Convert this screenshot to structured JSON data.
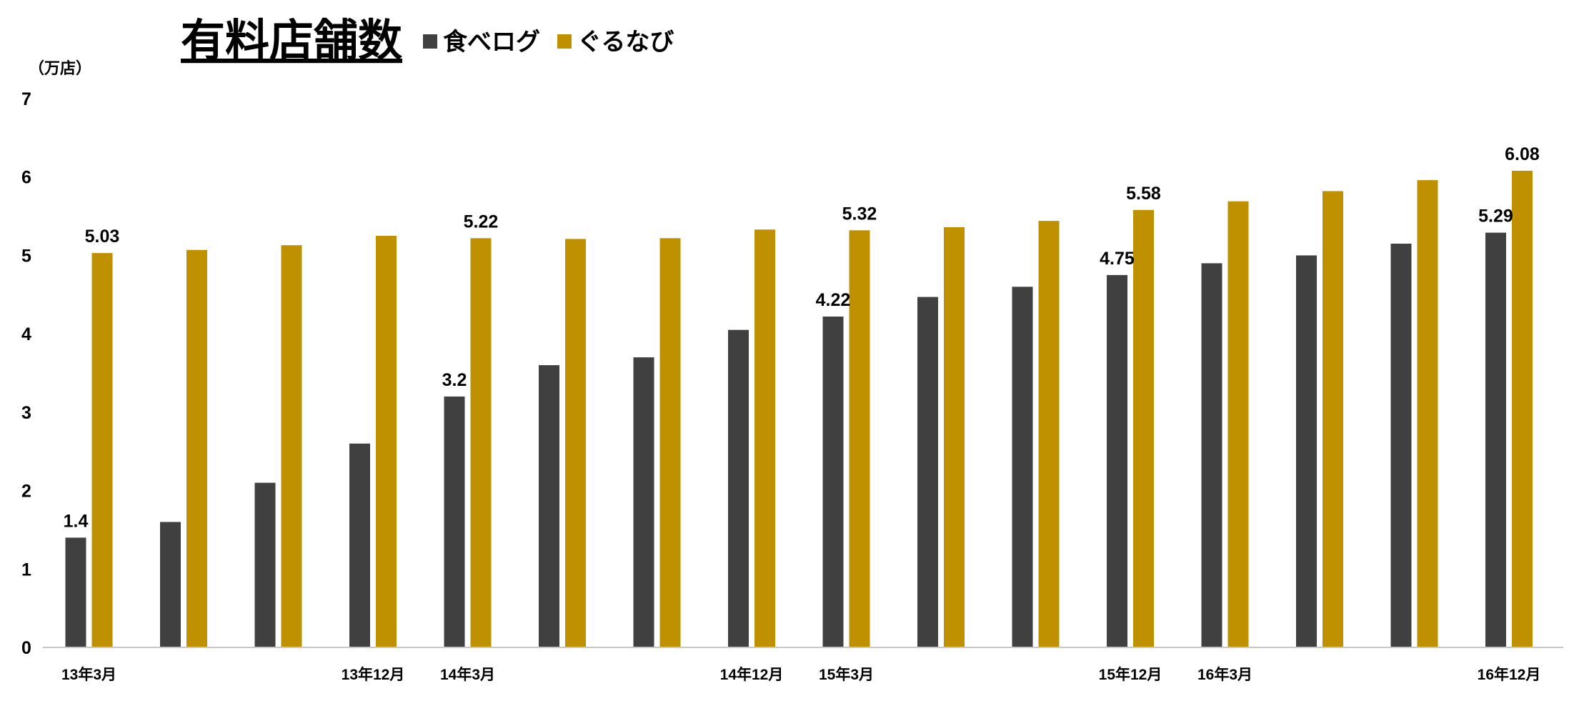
{
  "chart_data": {
    "type": "bar",
    "title": "有料店舗数",
    "unit_label": "（万店）",
    "ylim": [
      0,
      7
    ],
    "yticks": [
      "0",
      "1",
      "2",
      "3",
      "4",
      "5",
      "6",
      "7"
    ],
    "categories": [
      "13年3月",
      "",
      "",
      "13年12月",
      "14年3月",
      "",
      "",
      "14年12月",
      "15年3月",
      "",
      "",
      "15年12月",
      "16年3月",
      "",
      "",
      "16年12月"
    ],
    "series": [
      {
        "name": "食べログ",
        "color": "#404040",
        "values": [
          1.4,
          1.6,
          2.1,
          2.6,
          3.2,
          3.6,
          3.7,
          4.05,
          4.22,
          4.47,
          4.6,
          4.75,
          4.9,
          5.0,
          5.15,
          5.29
        ],
        "labels": [
          "1.4",
          "",
          "",
          "",
          "3.2",
          "",
          "",
          "",
          "4.22",
          "",
          "",
          "4.75",
          "",
          "",
          "",
          "5.29"
        ]
      },
      {
        "name": "ぐるなび",
        "color": "#bf9000",
        "values": [
          5.03,
          5.07,
          5.13,
          5.25,
          5.22,
          5.21,
          5.22,
          5.33,
          5.32,
          5.36,
          5.44,
          5.58,
          5.69,
          5.82,
          5.96,
          6.08
        ],
        "labels": [
          "5.03",
          "",
          "",
          "",
          "5.22",
          "",
          "",
          "",
          "5.32",
          "",
          "",
          "5.58",
          "",
          "",
          "",
          "6.08"
        ]
      }
    ],
    "axis_color": "#c8c8c8",
    "grid": false,
    "legend_position": "top"
  }
}
